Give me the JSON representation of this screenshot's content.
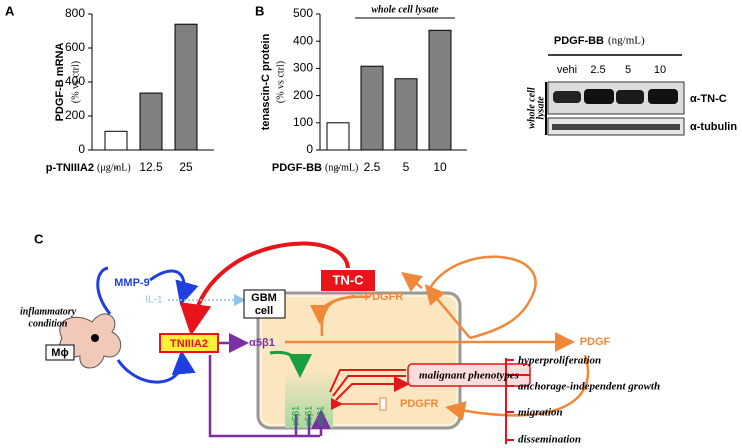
{
  "chart_data": [
    {
      "type": "bar",
      "panel": "A",
      "ylabel": "PDGF-B mRNA",
      "ylabel_unit": "(% vs ctrl)",
      "xlabel": "p-TNIIIA2",
      "xlabel_unit": "(μg/mL)",
      "categories": [
        "-",
        "12.5",
        "25"
      ],
      "values": [
        110,
        335,
        740
      ],
      "colors": [
        "#ffffff",
        "#808080",
        "#808080"
      ],
      "ylim": [
        0,
        800
      ],
      "yticks": [
        0,
        200,
        400,
        600,
        800
      ],
      "grid": false
    },
    {
      "type": "bar",
      "panel": "B",
      "ylabel": "tenascin-C protein",
      "ylabel_unit": "(% vs ctrl)",
      "xlabel": "PDGF-BB",
      "xlabel_unit": "(ng/mL)",
      "annotation": "whole cell lysate",
      "categories": [
        "-",
        "2.5",
        "5",
        "10"
      ],
      "values": [
        100,
        308,
        262,
        440
      ],
      "colors": [
        "#ffffff",
        "#808080",
        "#808080",
        "#808080"
      ],
      "ylim": [
        0,
        500
      ],
      "yticks": [
        0,
        100,
        200,
        300,
        400,
        500
      ],
      "grid": false
    }
  ],
  "blot": {
    "treatment": "PDGF-BB",
    "treatment_unit": "(ng/mL)",
    "lanes": [
      "vehi",
      "2.5",
      "5",
      "10"
    ],
    "sample": [
      "whole cell",
      "lysate"
    ],
    "bands": [
      "α-TN-C",
      "α-tubulin"
    ]
  },
  "diagram": {
    "panel": "C",
    "mmp9": "MMP-9",
    "il1": "IL-1",
    "gbm_cell": [
      "GBM",
      "cell"
    ],
    "tnc": "TN-C",
    "pdgfr_top": "PDGFR",
    "pdgf": "PDGF",
    "condition": [
      "inflammatory",
      "condition"
    ],
    "macrophage": "Mϕ",
    "tniiia2": "TNIIIA2",
    "integrin": "α5β1",
    "malignant": "malignant phenotypes",
    "pdgfr_bottom": "PDGFR",
    "integrins_vertical": [
      "α5β1",
      "α5β1",
      "α5β1"
    ],
    "phenotypes": [
      "hyperproliferation",
      "anchorage-independent growth",
      "migration",
      "dissemination"
    ]
  }
}
